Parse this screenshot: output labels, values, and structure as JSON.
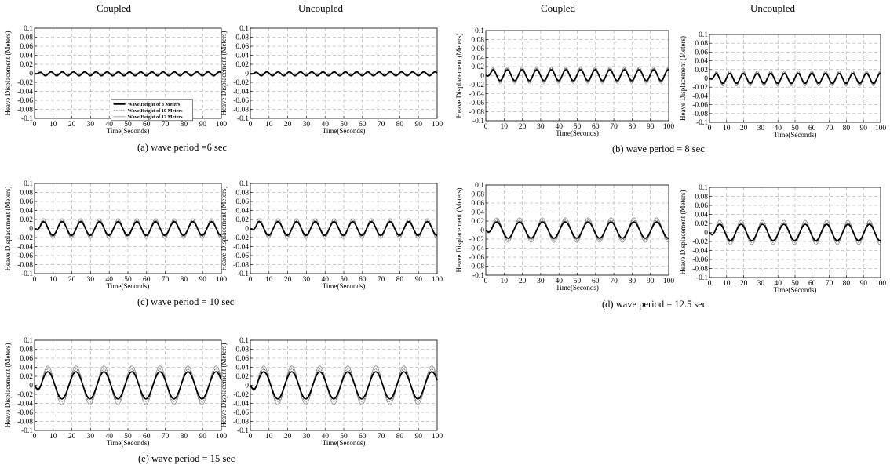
{
  "headers": [
    "Coupled",
    "Uncoupled",
    "Coupled",
    "Uncoupled"
  ],
  "captions": {
    "a": "(a) wave period =6 sec",
    "b": "(b) wave period = 8 sec",
    "c": "(c)  wave period = 10 sec",
    "d": "(d)   wave period = 12.5 sec",
    "e": "(e) wave period = 15 sec"
  },
  "legend": [
    "Wave Height of 8 Meters",
    "Wave Height of 10 Meters",
    "Wave Height of 12 Meters"
  ],
  "axes": {
    "xlabel": "Time(Seconds)",
    "ylabel": "Heave Displacement (Meters)",
    "xlim": [
      0,
      100
    ],
    "ylim": [
      -0.1,
      0.1
    ],
    "xticks": [
      0,
      10,
      20,
      30,
      40,
      50,
      60,
      70,
      80,
      90,
      100
    ],
    "yticks": [
      0.1,
      0.08,
      0.06,
      0.04,
      0.02,
      0,
      -0.02,
      -0.04,
      -0.06,
      -0.08,
      -0.1
    ],
    "ytick_labels": [
      "0.1",
      "0.08",
      "0.06",
      "0.04",
      "0.02",
      "0",
      "-0.02",
      "-0.04",
      "-0.06",
      "-0.08",
      "-0.1"
    ],
    "grid": true
  },
  "chart_data": [
    {
      "type": "line",
      "id": "a-coupled",
      "wave_period": 6,
      "model": "Coupled",
      "series": [
        {
          "name": "Wave Height of 8 Meters",
          "amplitude": 0.004,
          "period": 6,
          "offset": -0.001
        },
        {
          "name": "Wave Height of 10 Meters",
          "amplitude": 0.005,
          "period": 6,
          "offset": -0.001
        },
        {
          "name": "Wave Height of 12 Meters",
          "amplitude": 0.006,
          "period": 6,
          "offset": -0.001
        }
      ]
    },
    {
      "type": "line",
      "id": "a-uncoupled",
      "wave_period": 6,
      "model": "Uncoupled",
      "series": [
        {
          "name": "Wave Height of 8 Meters",
          "amplitude": 0.004,
          "period": 6,
          "offset": -0.001
        },
        {
          "name": "Wave Height of 10 Meters",
          "amplitude": 0.005,
          "period": 6,
          "offset": -0.001
        },
        {
          "name": "Wave Height of 12 Meters",
          "amplitude": 0.006,
          "period": 6,
          "offset": -0.001
        }
      ]
    },
    {
      "type": "line",
      "id": "b-coupled",
      "wave_period": 8,
      "model": "Coupled",
      "series": [
        {
          "name": "Wave Height of 8 Meters",
          "amplitude": 0.012,
          "period": 8,
          "offset": 0.001
        },
        {
          "name": "Wave Height of 10 Meters",
          "amplitude": 0.015,
          "period": 8,
          "offset": 0.001
        },
        {
          "name": "Wave Height of 12 Meters",
          "amplitude": 0.018,
          "period": 8,
          "offset": 0.001
        }
      ]
    },
    {
      "type": "line",
      "id": "b-uncoupled",
      "wave_period": 8,
      "model": "Uncoupled",
      "series": [
        {
          "name": "Wave Height of 8 Meters",
          "amplitude": 0.011,
          "period": 8,
          "offset": 0.0
        },
        {
          "name": "Wave Height of 10 Meters",
          "amplitude": 0.014,
          "period": 8,
          "offset": 0.0
        },
        {
          "name": "Wave Height of 12 Meters",
          "amplitude": 0.017,
          "period": 8,
          "offset": 0.0
        }
      ]
    },
    {
      "type": "line",
      "id": "c-coupled",
      "wave_period": 10,
      "model": "Coupled",
      "series": [
        {
          "name": "Wave Height of 8 Meters",
          "amplitude": 0.015,
          "period": 10,
          "offset": 0.0
        },
        {
          "name": "Wave Height of 10 Meters",
          "amplitude": 0.018,
          "period": 10,
          "offset": 0.0
        },
        {
          "name": "Wave Height of 12 Meters",
          "amplitude": 0.022,
          "period": 10,
          "offset": 0.0
        }
      ]
    },
    {
      "type": "line",
      "id": "c-uncoupled",
      "wave_period": 10,
      "model": "Uncoupled",
      "series": [
        {
          "name": "Wave Height of 8 Meters",
          "amplitude": 0.015,
          "period": 10,
          "offset": 0.0
        },
        {
          "name": "Wave Height of 10 Meters",
          "amplitude": 0.018,
          "period": 10,
          "offset": 0.0
        },
        {
          "name": "Wave Height of 12 Meters",
          "amplitude": 0.022,
          "period": 10,
          "offset": 0.0
        }
      ]
    },
    {
      "type": "line",
      "id": "d-coupled",
      "wave_period": 12.5,
      "model": "Coupled",
      "series": [
        {
          "name": "Wave Height of 8 Meters",
          "amplitude": 0.018,
          "period": 12.5,
          "offset": 0.0
        },
        {
          "name": "Wave Height of 10 Meters",
          "amplitude": 0.022,
          "period": 12.5,
          "offset": 0.0
        },
        {
          "name": "Wave Height of 12 Meters",
          "amplitude": 0.027,
          "period": 12.5,
          "offset": 0.0
        }
      ]
    },
    {
      "type": "line",
      "id": "d-uncoupled",
      "wave_period": 12.5,
      "model": "Uncoupled",
      "series": [
        {
          "name": "Wave Height of 8 Meters",
          "amplitude": 0.018,
          "period": 12.5,
          "offset": 0.0
        },
        {
          "name": "Wave Height of 10 Meters",
          "amplitude": 0.022,
          "period": 12.5,
          "offset": 0.0
        },
        {
          "name": "Wave Height of 12 Meters",
          "amplitude": 0.027,
          "period": 12.5,
          "offset": 0.0
        }
      ]
    },
    {
      "type": "line",
      "id": "e-coupled",
      "wave_period": 15,
      "model": "Coupled",
      "series": [
        {
          "name": "Wave Height of 8 Meters",
          "amplitude": 0.03,
          "period": 15,
          "offset": 0.0
        },
        {
          "name": "Wave Height of 10 Meters",
          "amplitude": 0.036,
          "period": 15,
          "offset": 0.0
        },
        {
          "name": "Wave Height of 12 Meters",
          "amplitude": 0.043,
          "period": 15,
          "offset": 0.0
        }
      ]
    },
    {
      "type": "line",
      "id": "e-uncoupled",
      "wave_period": 15,
      "model": "Uncoupled",
      "series": [
        {
          "name": "Wave Height of 8 Meters",
          "amplitude": 0.03,
          "period": 15,
          "offset": 0.0
        },
        {
          "name": "Wave Height of 10 Meters",
          "amplitude": 0.036,
          "period": 15,
          "offset": 0.0
        },
        {
          "name": "Wave Height of 12 Meters",
          "amplitude": 0.043,
          "period": 15,
          "offset": 0.0
        }
      ]
    }
  ]
}
